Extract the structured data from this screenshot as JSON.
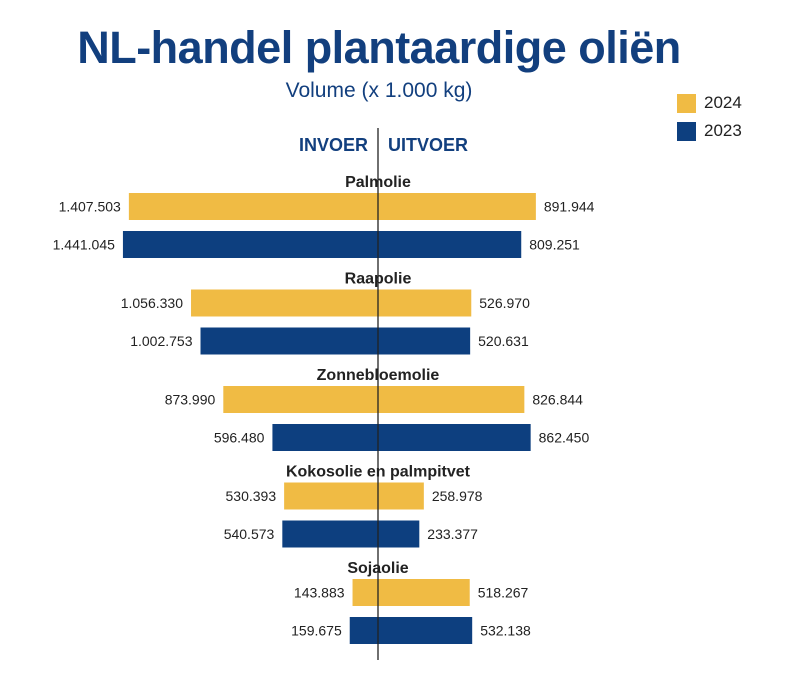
{
  "title": "NL-handel plantaardige oliën",
  "subtitle": "Volume (x 1.000 kg)",
  "colors": {
    "y2024": "#f0bb44",
    "y2023": "#0d3f7f",
    "text": "#222222",
    "title": "#123f7e"
  },
  "chart_data": {
    "type": "bar",
    "orientation": "horizontal-diverging",
    "left_label": "INVOER",
    "right_label": "UITVOER",
    "legend_placement": "top-right",
    "series": [
      {
        "name": "2024",
        "color": "#f0bb44"
      },
      {
        "name": "2023",
        "color": "#0d3f7f"
      }
    ],
    "categories": [
      {
        "name": "Palmolie",
        "invoer": [
          {
            "year": "2024",
            "value": 1407503,
            "label": "1.407.503"
          },
          {
            "year": "2023",
            "value": 1441045,
            "label": "1.441.045"
          }
        ],
        "uitvoer": [
          {
            "year": "2024",
            "value": 891944,
            "label": "891.944"
          },
          {
            "year": "2023",
            "value": 809251,
            "label": "809.251"
          }
        ]
      },
      {
        "name": "Raapolie",
        "invoer": [
          {
            "year": "2024",
            "value": 1056330,
            "label": "1.056.330"
          },
          {
            "year": "2023",
            "value": 1002753,
            "label": "1.002.753"
          }
        ],
        "uitvoer": [
          {
            "year": "2024",
            "value": 526970,
            "label": "526.970"
          },
          {
            "year": "2023",
            "value": 520631,
            "label": "520.631"
          }
        ]
      },
      {
        "name": "Zonnebloemolie",
        "invoer": [
          {
            "year": "2024",
            "value": 873990,
            "label": "873.990"
          },
          {
            "year": "2023",
            "value": 596480,
            "label": "596.480"
          }
        ],
        "uitvoer": [
          {
            "year": "2024",
            "value": 826844,
            "label": "826.844"
          },
          {
            "year": "2023",
            "value": 862450,
            "label": "862.450"
          }
        ]
      },
      {
        "name": "Kokosolie en palmpitvet",
        "invoer": [
          {
            "year": "2024",
            "value": 530393,
            "label": "530.393"
          },
          {
            "year": "2023",
            "value": 540573,
            "label": "540.573"
          }
        ],
        "uitvoer": [
          {
            "year": "2024",
            "value": 258978,
            "label": "258.978"
          },
          {
            "year": "2023",
            "value": 233377,
            "label": "233.377"
          }
        ]
      },
      {
        "name": "Sojaolie",
        "invoer": [
          {
            "year": "2024",
            "value": 143883,
            "label": "143.883"
          },
          {
            "year": "2023",
            "value": 159675,
            "label": "159.675"
          }
        ],
        "uitvoer": [
          {
            "year": "2024",
            "value": 518267,
            "label": "518.267"
          },
          {
            "year": "2023",
            "value": 532138,
            "label": "532.138"
          }
        ]
      }
    ]
  }
}
